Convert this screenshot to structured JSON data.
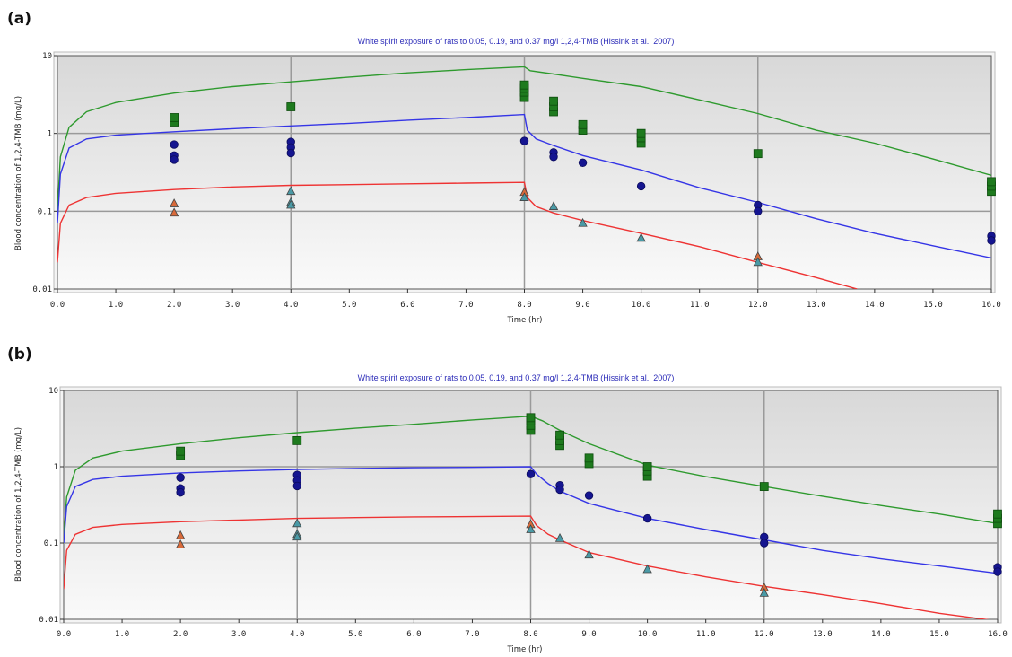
{
  "chart_data": [
    {
      "panel_label": "(a)",
      "type": "line",
      "title": "White spirit exposure of rats to 0.05, 0.19, and 0.37 mg/l 1,2,4-TMB (Hissink et al., 2007)",
      "xlabel": "Time (hr)",
      "ylabel": "Blood concentration of 1,2,4-TMB (mg/L)",
      "xlim": [
        0,
        16
      ],
      "ylim": [
        0.01,
        10
      ],
      "yscale": "log",
      "grid": true,
      "x_tick_labels": [
        "0.0",
        "1.0",
        "2.0",
        "3.0",
        "4.0",
        "5.0",
        "6.0",
        "7.0",
        "8.0",
        "9.0",
        "10.0",
        "11.0",
        "12.0",
        "13.0",
        "14.0",
        "15.0",
        "16.0"
      ],
      "y_tick_labels": [
        "10",
        "1",
        "0.1",
        "0.01"
      ],
      "series": [
        {
          "color": "#2e9a2e",
          "x": [
            0,
            0.05,
            0.2,
            0.5,
            1,
            2,
            3,
            4,
            5,
            6,
            7,
            8,
            8.1,
            8.5,
            9,
            10,
            11,
            12,
            13,
            14,
            15,
            16
          ],
          "values": [
            0.1,
            0.5,
            1.2,
            1.9,
            2.5,
            3.3,
            4.0,
            4.6,
            5.3,
            6.0,
            6.6,
            7.2,
            6.4,
            5.8,
            5.1,
            4.0,
            2.7,
            1.8,
            1.1,
            0.75,
            0.47,
            0.29
          ]
        },
        {
          "color": "#3535e6",
          "x": [
            0,
            0.05,
            0.2,
            0.5,
            1,
            2,
            3,
            4,
            5,
            6,
            7,
            8,
            8.05,
            8.2,
            8.5,
            9,
            10,
            11,
            12,
            13,
            14,
            15,
            16
          ],
          "values": [
            0.07,
            0.3,
            0.65,
            0.85,
            0.95,
            1.05,
            1.15,
            1.25,
            1.35,
            1.48,
            1.6,
            1.75,
            1.1,
            0.85,
            0.7,
            0.52,
            0.34,
            0.2,
            0.13,
            0.08,
            0.052,
            0.036,
            0.025
          ]
        },
        {
          "color": "#ee3333",
          "x": [
            0,
            0.05,
            0.2,
            0.5,
            1,
            2,
            3,
            4,
            5,
            6,
            7,
            8,
            8.05,
            8.2,
            8.5,
            9,
            10,
            11,
            12,
            13,
            13.7
          ],
          "values": [
            0.022,
            0.07,
            0.12,
            0.15,
            0.17,
            0.19,
            0.205,
            0.215,
            0.22,
            0.225,
            0.23,
            0.235,
            0.15,
            0.115,
            0.095,
            0.076,
            0.052,
            0.035,
            0.022,
            0.014,
            0.01
          ]
        }
      ],
      "observed": [
        {
          "marker": "square",
          "color": "#1e7a1e",
          "x": [
            2,
            2,
            4,
            8,
            8,
            8,
            8,
            8.5,
            8.5,
            8.5,
            9,
            9,
            10,
            10,
            10,
            12,
            16,
            16,
            16
          ],
          "values": [
            1.4,
            1.6,
            2.2,
            2.9,
            3.4,
            3.8,
            4.2,
            1.9,
            2.2,
            2.6,
            1.1,
            1.3,
            0.75,
            0.88,
            1.0,
            0.55,
            0.18,
            0.21,
            0.24
          ]
        },
        {
          "marker": "circle",
          "color": "#151590",
          "x": [
            2,
            2,
            2,
            4,
            4,
            4,
            8,
            8.5,
            8.5,
            9,
            10,
            12,
            12,
            16,
            16
          ],
          "values": [
            0.72,
            0.52,
            0.46,
            0.78,
            0.66,
            0.56,
            0.8,
            0.57,
            0.5,
            0.42,
            0.21,
            0.12,
            0.1,
            0.048,
            0.042
          ]
        },
        {
          "marker": "triangle",
          "color": "#d96a3a",
          "x": [
            2,
            2,
            8,
            12
          ],
          "values": [
            0.125,
            0.095,
            0.175,
            0.026
          ]
        },
        {
          "marker": "triangle",
          "color": "#4a9aa6",
          "x": [
            4,
            4,
            4,
            8,
            8.5,
            9,
            10,
            12
          ],
          "values": [
            0.18,
            0.13,
            0.12,
            0.15,
            0.115,
            0.07,
            0.045,
            0.022
          ]
        }
      ]
    },
    {
      "panel_label": "(b)",
      "type": "line",
      "title": "White spirit exposure of rats to 0.05, 0.19, and 0.37 mg/l 1,2,4-TMB (Hissink et al., 2007)",
      "xlabel": "Time (hr)",
      "ylabel": "Blood concentration of 1,2,4-TMB (mg/L)",
      "xlim": [
        0,
        16
      ],
      "ylim": [
        0.01,
        10
      ],
      "yscale": "log",
      "grid": true,
      "x_tick_labels": [
        "0.0",
        "1.0",
        "2.0",
        "3.0",
        "4.0",
        "5.0",
        "6.0",
        "7.0",
        "8.0",
        "9.0",
        "10.0",
        "11.0",
        "12.0",
        "13.0",
        "14.0",
        "15.0",
        "16.0"
      ],
      "y_tick_labels": [
        "10",
        "1",
        "0.1",
        "0.01"
      ],
      "series": [
        {
          "color": "#2e9a2e",
          "x": [
            0,
            0.05,
            0.2,
            0.5,
            1,
            2,
            3,
            4,
            5,
            6,
            7,
            8,
            8.2,
            8.5,
            9,
            10,
            11,
            12,
            13,
            14,
            15,
            16
          ],
          "values": [
            0.12,
            0.4,
            0.9,
            1.3,
            1.6,
            2.0,
            2.4,
            2.8,
            3.2,
            3.6,
            4.1,
            4.6,
            4.0,
            3.0,
            2.0,
            1.05,
            0.74,
            0.55,
            0.41,
            0.31,
            0.24,
            0.18
          ]
        },
        {
          "color": "#3535e6",
          "x": [
            0,
            0.05,
            0.2,
            0.5,
            1,
            2,
            3,
            4,
            5,
            6,
            7,
            8,
            8.1,
            8.3,
            8.5,
            9,
            10,
            11,
            12,
            13,
            14,
            15,
            16
          ],
          "values": [
            0.1,
            0.3,
            0.55,
            0.68,
            0.75,
            0.83,
            0.88,
            0.92,
            0.95,
            0.97,
            0.98,
            1.0,
            0.8,
            0.6,
            0.48,
            0.33,
            0.21,
            0.15,
            0.11,
            0.08,
            0.062,
            0.05,
            0.04
          ]
        },
        {
          "color": "#ee3333",
          "x": [
            0,
            0.05,
            0.2,
            0.5,
            1,
            2,
            3,
            4,
            5,
            6,
            7,
            8,
            8.1,
            8.3,
            8.5,
            9,
            10,
            11,
            12,
            13,
            14,
            15,
            16
          ],
          "values": [
            0.025,
            0.08,
            0.13,
            0.16,
            0.175,
            0.19,
            0.2,
            0.21,
            0.215,
            0.22,
            0.222,
            0.225,
            0.17,
            0.13,
            0.11,
            0.075,
            0.05,
            0.036,
            0.027,
            0.021,
            0.016,
            0.012,
            0.0095
          ]
        }
      ],
      "observed": [
        {
          "marker": "square",
          "color": "#1e7a1e",
          "x": [
            2,
            2,
            4,
            8,
            8,
            8,
            8,
            8.5,
            8.5,
            8.5,
            9,
            9,
            10,
            10,
            10,
            12,
            16,
            16,
            16
          ],
          "values": [
            1.4,
            1.6,
            2.2,
            3.0,
            3.5,
            4.0,
            4.4,
            1.9,
            2.2,
            2.6,
            1.1,
            1.3,
            0.75,
            0.88,
            1.0,
            0.55,
            0.18,
            0.21,
            0.24
          ]
        },
        {
          "marker": "circle",
          "color": "#151590",
          "x": [
            2,
            2,
            2,
            4,
            4,
            4,
            8,
            8.5,
            8.5,
            9,
            10,
            12,
            12,
            16,
            16
          ],
          "values": [
            0.72,
            0.52,
            0.46,
            0.78,
            0.66,
            0.56,
            0.8,
            0.57,
            0.5,
            0.42,
            0.21,
            0.12,
            0.1,
            0.048,
            0.042
          ]
        },
        {
          "marker": "triangle",
          "color": "#d96a3a",
          "x": [
            2,
            2,
            8,
            12
          ],
          "values": [
            0.125,
            0.095,
            0.175,
            0.026
          ]
        },
        {
          "marker": "triangle",
          "color": "#4a9aa6",
          "x": [
            4,
            4,
            4,
            8,
            8.5,
            9,
            10,
            12
          ],
          "values": [
            0.18,
            0.13,
            0.12,
            0.15,
            0.115,
            0.07,
            0.045,
            0.022
          ]
        }
      ]
    }
  ]
}
